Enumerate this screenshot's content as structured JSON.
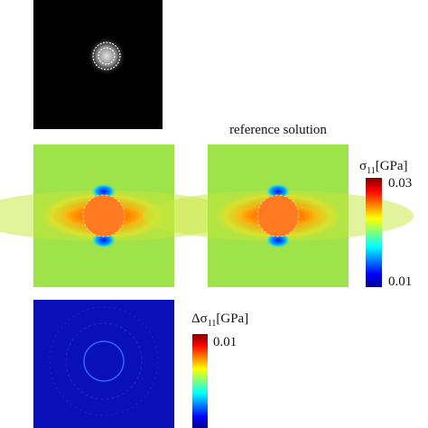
{
  "panels": {
    "reference_title": "reference solution"
  },
  "colorbars": [
    {
      "symbol": "σ",
      "subscript": "11",
      "unit": "[GPa]",
      "max_label": 0.03,
      "min_label": 0.01
    },
    {
      "symbol": "Δσ",
      "subscript": "11",
      "unit": "[GPa]",
      "max_label": 0.01
    }
  ]
}
